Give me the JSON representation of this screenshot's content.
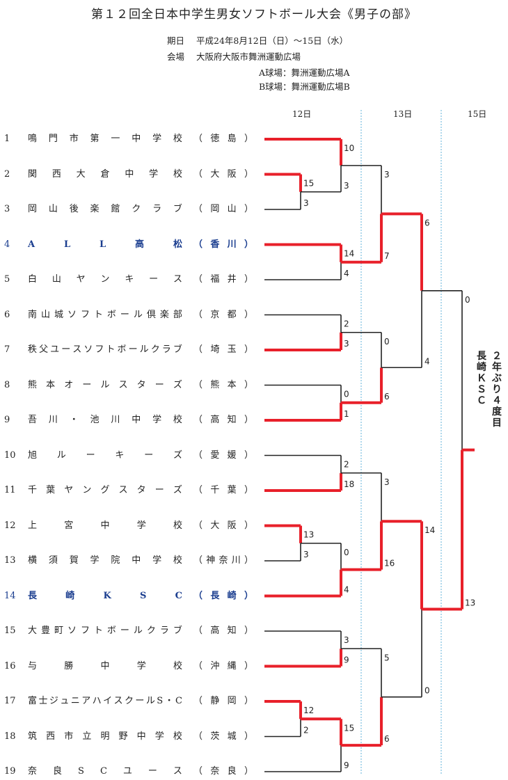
{
  "title": "第１２回全日本中学生男女ソフトボール大会《男子の部》",
  "info": {
    "date_label": "期日",
    "date_value": "平成24年8月12日（日）～15日（水）",
    "venue_label": "会場",
    "venue_value": "大阪府大阪市舞洲運動広場",
    "field_a": "A球場：舞洲運動広場A",
    "field_b": "B球場：舞洲運動広場B"
  },
  "days": [
    "12日",
    "13日",
    "15日"
  ],
  "teams": [
    {
      "num": "1",
      "name": "鳴門市第一中学校",
      "pref": "徳島"
    },
    {
      "num": "2",
      "name": "関西大倉中学校",
      "pref": "大阪"
    },
    {
      "num": "3",
      "name": "岡山後楽館クラブ",
      "pref": "岡山"
    },
    {
      "num": "4",
      "name": "ALL高松",
      "pref": "香川",
      "highlight": true
    },
    {
      "num": "5",
      "name": "白山ヤンキース",
      "pref": "福井"
    },
    {
      "num": "6",
      "name": "南山城ソフトボール倶楽部",
      "pref": "京都"
    },
    {
      "num": "7",
      "name": "秩父ユースソフトボールクラブ",
      "pref": "埼玉"
    },
    {
      "num": "8",
      "name": "熊本オールスターズ",
      "pref": "熊本"
    },
    {
      "num": "9",
      "name": "吾川・池川中学校",
      "pref": "高知"
    },
    {
      "num": "10",
      "name": "旭ルーキーズ",
      "pref": "愛媛"
    },
    {
      "num": "11",
      "name": "千葉ヤングスターズ",
      "pref": "千葉"
    },
    {
      "num": "12",
      "name": "上宮中学校",
      "pref": "大阪"
    },
    {
      "num": "13",
      "name": "横須賀学院中学校",
      "pref": "神奈川"
    },
    {
      "num": "14",
      "name": "長崎KSC",
      "pref": "長崎",
      "highlight": true
    },
    {
      "num": "15",
      "name": "大豊町ソフトボールクラブ",
      "pref": "高知"
    },
    {
      "num": "16",
      "name": "与勝中学校",
      "pref": "沖縄"
    },
    {
      "num": "17",
      "name": "富士ジュニアハイスクールS・C",
      "pref": "静岡"
    },
    {
      "num": "18",
      "name": "筑西市立明野中学校",
      "pref": "茨城"
    },
    {
      "num": "19",
      "name": "奈良SCユース",
      "pref": "奈良"
    }
  ],
  "champion_note": [
    "２年ぶり４度目",
    "長崎ＫＳＣ"
  ],
  "colors": {
    "win": "#e8202a",
    "lose": "#222222",
    "divider": "#5fb0d8",
    "highlight": "#1a3d8f"
  },
  "bracket": {
    "matches": [
      {
        "a": "T2",
        "b": "T3",
        "sa": "15",
        "sb": "3",
        "w": "a"
      },
      {
        "a": "T1",
        "b": "M0",
        "sa": "10",
        "sb": "3",
        "w": "a"
      },
      {
        "a": "T4",
        "b": "T5",
        "sa": "14",
        "sb": "4",
        "w": "a"
      },
      {
        "a": "T6",
        "b": "T7",
        "sa": "2",
        "sb": "3",
        "w": "b"
      },
      {
        "a": "T8",
        "b": "T9",
        "sa": "0",
        "sb": "1",
        "w": "b"
      },
      {
        "a": "T10",
        "b": "T11",
        "sa": "2",
        "sb": "18",
        "w": "b"
      },
      {
        "a": "T12",
        "b": "T13",
        "sa": "13",
        "sb": "3",
        "w": "a"
      },
      {
        "a": "M6",
        "b": "T14",
        "sa": "0",
        "sb": "4",
        "w": "b"
      },
      {
        "a": "T15",
        "b": "T16",
        "sa": "3",
        "sb": "9",
        "w": "b"
      },
      {
        "a": "T17",
        "b": "T18",
        "sa": "12",
        "sb": "2",
        "w": "a"
      },
      {
        "a": "M9",
        "b": "T19",
        "sa": "15",
        "sb": "9",
        "w": "a"
      },
      {
        "a": "M1",
        "b": "M2",
        "sa": "3",
        "sb": "7",
        "w": "b"
      },
      {
        "a": "M3",
        "b": "M4",
        "sa": "0",
        "sb": "6",
        "w": "b"
      },
      {
        "a": "M5",
        "b": "M7",
        "sa": "3",
        "sb": "16",
        "w": "b"
      },
      {
        "a": "M8",
        "b": "M10",
        "sa": "5",
        "sb": "6",
        "w": "b"
      },
      {
        "a": "M11",
        "b": "M12",
        "sa": "6",
        "sb": "4",
        "w": "a"
      },
      {
        "a": "M13",
        "b": "M14",
        "sa": "14",
        "sb": "0",
        "w": "a"
      },
      {
        "a": "M15",
        "b": "M16",
        "sa": "0",
        "sb": "13",
        "w": "b"
      }
    ]
  }
}
